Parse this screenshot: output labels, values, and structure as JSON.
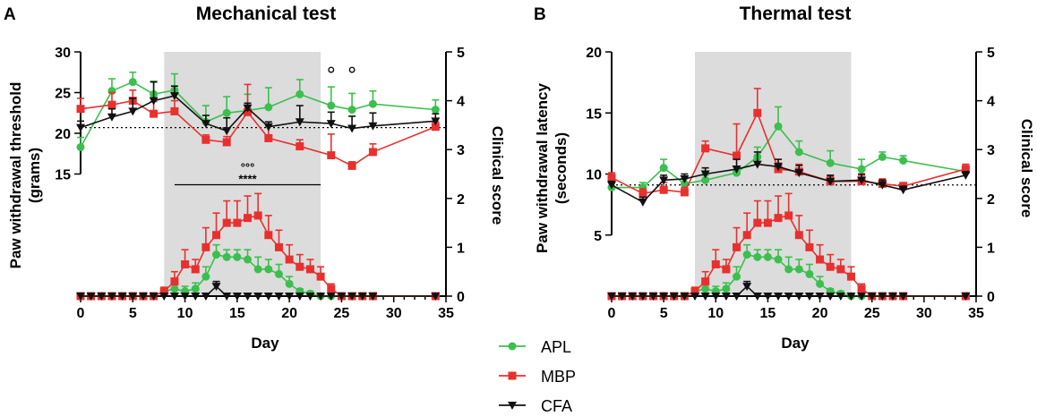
{
  "chart_data": [
    {
      "panel": "A",
      "type": "line",
      "title": "Mechanical test",
      "xlabel": "Day",
      "ylabel": "Paw withdrawal threshold (grams)",
      "y2label": "Clinical score",
      "xlim": [
        0,
        35
      ],
      "xticks": [
        "0",
        "5",
        "10",
        "15",
        "20",
        "25",
        "30",
        "35"
      ],
      "ylim": [
        0,
        30
      ],
      "yticks": [
        "15",
        "20",
        "25",
        "30"
      ],
      "y2lim": [
        0,
        5
      ],
      "y2ticks": [
        "0",
        "1",
        "2",
        "3",
        "4",
        "5"
      ],
      "shaded_days": [
        8,
        23
      ],
      "baseline": 20.7,
      "significance": {
        "circles": "°°°",
        "stars": "****",
        "from": 9,
        "to": 23,
        "y2": 2.28,
        "circle_days": [
          24,
          26
        ],
        "circle_y": 27.8
      },
      "series": [
        {
          "name": "APL",
          "color": "#3bbf4e",
          "axis": "left",
          "x": [
            0,
            3,
            5,
            7,
            9,
            12,
            14,
            16,
            18,
            21,
            24,
            26,
            28,
            34
          ],
          "y": [
            18.3,
            25.2,
            26.3,
            24.8,
            25.3,
            21.4,
            22.5,
            22.8,
            23.2,
            24.8,
            23.4,
            22.9,
            23.6,
            22.9
          ],
          "err": [
            1.2,
            1.5,
            1.2,
            1.6,
            2,
            2,
            2,
            2,
            2.4,
            1.8,
            2.3,
            2,
            1.6,
            1.2
          ]
        },
        {
          "name": "MBP",
          "color": "#e8302f",
          "axis": "left",
          "x": [
            0,
            3,
            5,
            7,
            9,
            12,
            14,
            16,
            18,
            21,
            24,
            26,
            28,
            34
          ],
          "y": [
            23,
            23.5,
            24,
            22.4,
            22.7,
            19.2,
            18.9,
            22.6,
            19.4,
            18.4,
            17.3,
            16,
            17.7,
            20.8
          ],
          "err": [
            1.3,
            1.5,
            1.3,
            1.5,
            1.3,
            0.6,
            0.7,
            3.4,
            1.5,
            0.8,
            2.6,
            0.5,
            1,
            0.6
          ]
        },
        {
          "name": "CFA",
          "color": "#111111",
          "axis": "left",
          "x": [
            0,
            3,
            5,
            7,
            9,
            12,
            14,
            16,
            18,
            21,
            24,
            26,
            28,
            34
          ],
          "y": [
            20.7,
            22,
            22.7,
            24,
            24.6,
            21.2,
            20.3,
            23.1,
            20.8,
            21.4,
            21.2,
            20.6,
            20.9,
            21.5
          ],
          "err": [
            0.8,
            1,
            1.6,
            2.3,
            1.2,
            1,
            1.6,
            0.6,
            0.6,
            2,
            1.4,
            1.5,
            1.6,
            0.9
          ]
        },
        {
          "name": "APL score",
          "color": "#3bbf4e",
          "axis": "right",
          "x": [
            0,
            1,
            2,
            3,
            4,
            5,
            6,
            7,
            8,
            9,
            10,
            11,
            12,
            13,
            14,
            15,
            16,
            17,
            18,
            19,
            20,
            21,
            22,
            23,
            24,
            25,
            26,
            27,
            28,
            34
          ],
          "y": [
            0,
            0,
            0,
            0,
            0,
            0,
            0,
            0,
            0.1,
            0.15,
            0.1,
            0.15,
            0.4,
            0.85,
            0.8,
            0.8,
            0.75,
            0.55,
            0.55,
            0.45,
            0.25,
            0.1,
            0.05,
            0,
            0,
            0,
            0,
            0,
            0,
            0
          ],
          "err": [
            0,
            0,
            0,
            0,
            0,
            0,
            0,
            0,
            0.08,
            0.1,
            0.1,
            0.12,
            0.2,
            0.2,
            0.15,
            0.15,
            0.2,
            0.25,
            0.2,
            0.2,
            0.15,
            0.05,
            0.05,
            0,
            0,
            0,
            0,
            0,
            0,
            0
          ]
        },
        {
          "name": "MBP score",
          "color": "#e8302f",
          "axis": "right",
          "x": [
            0,
            1,
            2,
            3,
            4,
            5,
            6,
            7,
            8,
            9,
            10,
            11,
            12,
            13,
            14,
            15,
            16,
            17,
            18,
            19,
            20,
            21,
            22,
            23,
            24,
            25,
            26,
            27,
            28,
            34
          ],
          "y": [
            0,
            0,
            0,
            0,
            0,
            0,
            0,
            0,
            0.1,
            0.3,
            0.65,
            0.55,
            1,
            1.25,
            1.5,
            1.5,
            1.6,
            1.65,
            1.25,
            1,
            0.75,
            0.6,
            0.55,
            0.4,
            0.15,
            0,
            0,
            0,
            0,
            0
          ],
          "err": [
            0,
            0,
            0,
            0,
            0,
            0,
            0,
            0,
            0.08,
            0.2,
            0.3,
            0.2,
            0.4,
            0.45,
            0.45,
            0.45,
            0.45,
            0.45,
            0.4,
            0.35,
            0.3,
            0.25,
            0.2,
            0.2,
            0.1,
            0,
            0,
            0,
            0,
            0
          ]
        },
        {
          "name": "CFA score",
          "color": "#111111",
          "axis": "right",
          "x": [
            0,
            1,
            2,
            3,
            4,
            5,
            6,
            7,
            8,
            9,
            10,
            11,
            12,
            13,
            14,
            15,
            16,
            17,
            18,
            19,
            20,
            21,
            22,
            23,
            24,
            25,
            26,
            27,
            28,
            34
          ],
          "y": [
            0,
            0,
            0,
            0,
            0,
            0,
            0,
            0,
            0,
            0,
            0,
            0,
            0,
            0.2,
            0,
            0,
            0,
            0,
            0,
            0,
            0,
            0,
            0,
            0,
            0,
            0,
            0,
            0,
            0,
            0
          ],
          "err": [
            0,
            0,
            0,
            0,
            0,
            0,
            0,
            0,
            0,
            0,
            0,
            0,
            0,
            0.1,
            0,
            0,
            0,
            0,
            0,
            0,
            0,
            0,
            0,
            0,
            0,
            0,
            0,
            0,
            0,
            0
          ]
        }
      ]
    },
    {
      "panel": "B",
      "type": "line",
      "title": "Thermal test",
      "xlabel": "Day",
      "ylabel": "Paw withdrawal latency (seconds)",
      "y2label": "Clinical score",
      "xlim": [
        0,
        35
      ],
      "xticks": [
        "0",
        "5",
        "10",
        "15",
        "20",
        "25",
        "30",
        "35"
      ],
      "ylim": [
        0,
        20
      ],
      "yticks": [
        "5",
        "10",
        "15",
        "20"
      ],
      "y2lim": [
        0,
        5
      ],
      "y2ticks": [
        "0",
        "1",
        "2",
        "3",
        "4",
        "5"
      ],
      "shaded_days": [
        8,
        23
      ],
      "baseline": 9.1,
      "series": [
        {
          "name": "APL",
          "color": "#3bbf4e",
          "axis": "left",
          "x": [
            0,
            3,
            5,
            7,
            9,
            12,
            14,
            16,
            18,
            21,
            24,
            26,
            28,
            34
          ],
          "y": [
            8.9,
            8.9,
            10.5,
            9.2,
            9.5,
            10.1,
            11.4,
            13.9,
            11.8,
            10.9,
            10.4,
            11.4,
            11.1,
            10.2
          ],
          "err": [
            0.4,
            0.4,
            0.7,
            0.4,
            0.4,
            0.5,
            0.8,
            1.6,
            0.9,
            1,
            0.8,
            0.4,
            0.4,
            0.4
          ]
        },
        {
          "name": "MBP",
          "color": "#e8302f",
          "axis": "left",
          "x": [
            0,
            3,
            5,
            7,
            9,
            12,
            14,
            16,
            18,
            21,
            24,
            26,
            28,
            34
          ],
          "y": [
            9.7,
            8.4,
            8.7,
            8.5,
            12.1,
            11.5,
            15,
            10.4,
            10.2,
            9.4,
            9.4,
            9.2,
            9,
            10.4
          ],
          "err": [
            0.4,
            0.4,
            0.6,
            0.4,
            0.6,
            2.6,
            2,
            0.5,
            0.6,
            0.4,
            0.5,
            0.4,
            0.3,
            0.4
          ]
        },
        {
          "name": "CFA",
          "color": "#111111",
          "axis": "left",
          "x": [
            0,
            3,
            5,
            7,
            9,
            12,
            14,
            16,
            18,
            21,
            24,
            26,
            28,
            34
          ],
          "y": [
            9.1,
            7.7,
            9.5,
            9.6,
            10,
            10.4,
            10.8,
            10.6,
            10.1,
            9.4,
            9.5,
            9.1,
            8.7,
            9.9
          ],
          "err": [
            0.3,
            0.4,
            0.4,
            0.4,
            0.5,
            0.8,
            1,
            0.6,
            0.6,
            0.5,
            0.5,
            0.4,
            0.3,
            0.3
          ]
        },
        {
          "name": "APL score",
          "color": "#3bbf4e",
          "axis": "right",
          "x": [
            0,
            1,
            2,
            3,
            4,
            5,
            6,
            7,
            8,
            9,
            10,
            11,
            12,
            13,
            14,
            15,
            16,
            17,
            18,
            19,
            20,
            21,
            22,
            23,
            24,
            25,
            26,
            27,
            28,
            34
          ],
          "y": [
            0,
            0,
            0,
            0,
            0,
            0,
            0,
            0,
            0.1,
            0.15,
            0.1,
            0.15,
            0.4,
            0.85,
            0.8,
            0.8,
            0.75,
            0.55,
            0.55,
            0.45,
            0.25,
            0.1,
            0.05,
            0,
            0,
            0,
            0,
            0,
            0,
            0
          ],
          "err": [
            0,
            0,
            0,
            0,
            0,
            0,
            0,
            0,
            0.08,
            0.1,
            0.1,
            0.12,
            0.2,
            0.2,
            0.15,
            0.15,
            0.2,
            0.25,
            0.2,
            0.2,
            0.15,
            0.05,
            0.05,
            0,
            0,
            0,
            0,
            0,
            0,
            0
          ]
        },
        {
          "name": "MBP score",
          "color": "#e8302f",
          "axis": "right",
          "x": [
            0,
            1,
            2,
            3,
            4,
            5,
            6,
            7,
            8,
            9,
            10,
            11,
            12,
            13,
            14,
            15,
            16,
            17,
            18,
            19,
            20,
            21,
            22,
            23,
            24,
            25,
            26,
            27,
            28,
            34
          ],
          "y": [
            0,
            0,
            0,
            0,
            0,
            0,
            0,
            0,
            0.1,
            0.3,
            0.65,
            0.55,
            1,
            1.25,
            1.5,
            1.5,
            1.6,
            1.65,
            1.25,
            1,
            0.75,
            0.6,
            0.55,
            0.4,
            0.15,
            0,
            0,
            0,
            0,
            0
          ],
          "err": [
            0,
            0,
            0,
            0,
            0,
            0,
            0,
            0,
            0.08,
            0.2,
            0.3,
            0.2,
            0.4,
            0.45,
            0.45,
            0.45,
            0.45,
            0.45,
            0.4,
            0.35,
            0.3,
            0.25,
            0.2,
            0.2,
            0.1,
            0,
            0,
            0,
            0,
            0
          ]
        },
        {
          "name": "CFA score",
          "color": "#111111",
          "axis": "right",
          "x": [
            0,
            1,
            2,
            3,
            4,
            5,
            6,
            7,
            8,
            9,
            10,
            11,
            12,
            13,
            14,
            15,
            16,
            17,
            18,
            19,
            20,
            21,
            22,
            23,
            24,
            25,
            26,
            27,
            28,
            34
          ],
          "y": [
            0,
            0,
            0,
            0,
            0,
            0,
            0,
            0,
            0,
            0,
            0,
            0,
            0,
            0.2,
            0,
            0,
            0,
            0,
            0,
            0,
            0,
            0,
            0,
            0,
            0,
            0,
            0,
            0,
            0,
            0
          ],
          "err": [
            0,
            0,
            0,
            0,
            0,
            0,
            0,
            0,
            0,
            0,
            0,
            0,
            0,
            0.1,
            0,
            0,
            0,
            0,
            0,
            0,
            0,
            0,
            0,
            0,
            0,
            0,
            0,
            0,
            0,
            0
          ]
        }
      ]
    }
  ],
  "legend": {
    "items": [
      {
        "label": "APL",
        "color": "#3bbf4e",
        "marker": "circle"
      },
      {
        "label": "MBP",
        "color": "#e8302f",
        "marker": "square"
      },
      {
        "label": "CFA",
        "color": "#111111",
        "marker": "triangle-down"
      }
    ]
  }
}
